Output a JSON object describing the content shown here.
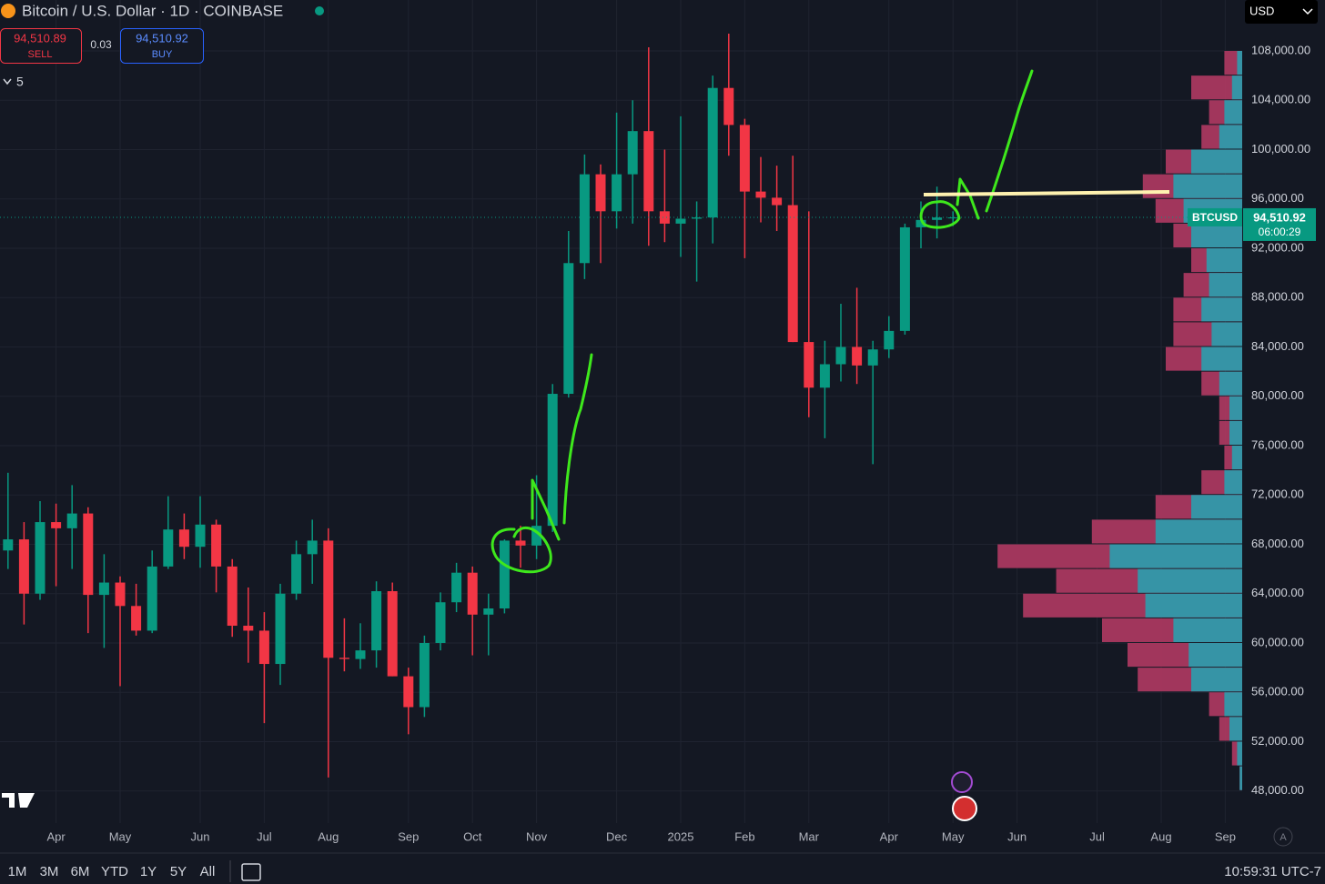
{
  "ui": {
    "symbol_title": "Bitcoin / U.S. Dollar · 1D · COINBASE",
    "sell_price": "94,510.89",
    "sell_label": "SELL",
    "spread": "0.03",
    "buy_price": "94,510.92",
    "buy_label": "BUY",
    "indicator_count": "5",
    "currency": "USD",
    "ranges": [
      "1M",
      "3M",
      "6M",
      "YTD",
      "1Y",
      "5Y",
      "All"
    ],
    "clock": "10:59:31 UTC-7",
    "auto_button": "A"
  },
  "chart_data": {
    "type": "candlestick",
    "categories": [
      null,
      null,
      null,
      "Apr",
      null,
      null,
      null,
      "May",
      null,
      null,
      null,
      null,
      "Jun",
      null,
      null,
      null,
      "Jul",
      null,
      null,
      null,
      "Aug",
      null,
      null,
      null,
      null,
      "Sep",
      null,
      null,
      null,
      "Oct",
      null,
      null,
      null,
      "Nov",
      null,
      null,
      null,
      null,
      "Dec",
      null,
      null,
      null,
      "2025",
      null,
      null,
      null,
      "Feb",
      null,
      null,
      null,
      "Mar",
      null,
      null,
      null,
      null,
      "Apr",
      null,
      null,
      null,
      "May",
      null,
      null,
      null,
      "Jun",
      null,
      null,
      null,
      null,
      "Jul",
      null,
      null,
      null,
      "Aug",
      null,
      null,
      null,
      "Sep"
    ],
    "open": [
      67500,
      68400,
      64000,
      69800,
      69300,
      70500,
      63900,
      64900,
      63000,
      61000,
      66200,
      69200,
      67800,
      69600,
      66200,
      61400,
      61000,
      58300,
      64000,
      67200,
      68300,
      58800,
      58700,
      59400,
      64200,
      57300,
      54800,
      60000,
      63300,
      65700,
      62300,
      62800,
      68300,
      67900,
      69500,
      80200,
      90800,
      98000,
      95000,
      98000,
      101500,
      95000,
      94000,
      94400,
      94500,
      105000,
      102000,
      96600,
      96100,
      95500,
      84400,
      80700,
      82600,
      84000,
      82500,
      83800,
      85300,
      93700,
      94300,
      94500,
      null,
      null,
      null,
      null,
      null,
      null,
      null,
      null,
      null,
      null,
      null,
      null,
      null,
      null,
      null,
      null,
      null
    ],
    "high": [
      73800,
      69800,
      71500,
      71300,
      72800,
      71000,
      67200,
      65400,
      64800,
      67500,
      71900,
      70500,
      71900,
      70000,
      66800,
      64500,
      62500,
      64800,
      68300,
      70000,
      69300,
      62000,
      61600,
      65000,
      64900,
      58000,
      60600,
      64100,
      66500,
      66200,
      64000,
      68400,
      69500,
      73600,
      81000,
      93400,
      99600,
      98800,
      103000,
      104000,
      108300,
      100000,
      102700,
      95800,
      106000,
      109400,
      102500,
      99400,
      98700,
      99500,
      95000,
      84500,
      87500,
      88800,
      84500,
      86500,
      94000,
      95800,
      97000,
      95000,
      null,
      null,
      null,
      null,
      null,
      null,
      null,
      null,
      null,
      null,
      null,
      null,
      null,
      null,
      null,
      null,
      null
    ],
    "low": [
      66000,
      61500,
      63500,
      64600,
      66000,
      60800,
      59600,
      56500,
      60600,
      60800,
      66000,
      66800,
      66100,
      64100,
      60500,
      58400,
      53500,
      56600,
      63500,
      64800,
      49100,
      57700,
      57900,
      58000,
      57300,
      52600,
      54000,
      59400,
      62500,
      59000,
      59000,
      62400,
      66100,
      66800,
      69000,
      79900,
      89500,
      90800,
      93600,
      94000,
      92200,
      92500,
      91300,
      89300,
      92400,
      99500,
      91200,
      94100,
      93400,
      84400,
      78300,
      76600,
      81200,
      81000,
      74500,
      83100,
      85000,
      92000,
      92800,
      93800,
      null,
      null,
      null,
      null,
      null,
      null,
      null,
      null,
      null,
      null,
      null,
      null,
      null,
      null,
      null,
      null,
      null
    ],
    "close": [
      68400,
      64000,
      69800,
      69300,
      70500,
      63900,
      64900,
      63000,
      61000,
      66200,
      69200,
      67800,
      69600,
      66200,
      61400,
      61000,
      58300,
      64000,
      67200,
      68300,
      58800,
      58700,
      59400,
      64200,
      57300,
      54800,
      60000,
      63300,
      65700,
      62300,
      62800,
      68300,
      67900,
      69500,
      80200,
      90800,
      98000,
      95000,
      98000,
      101500,
      95000,
      94000,
      94400,
      94500,
      105000,
      102000,
      96600,
      96100,
      95500,
      84400,
      80700,
      82600,
      84000,
      82500,
      83800,
      85300,
      93700,
      94300,
      94500,
      94500,
      null,
      null,
      null,
      null,
      null,
      null,
      null,
      null,
      null,
      null,
      null,
      null,
      null,
      null,
      null,
      null,
      null
    ],
    "up_color": "#089981",
    "down_color": "#f23645",
    "ylim": [
      45400,
      112130
    ],
    "yticks": [
      {
        "value": 48000,
        "label": "48,000.00"
      },
      {
        "value": 52000,
        "label": "52,000.00"
      },
      {
        "value": 56000,
        "label": "56,000.00"
      },
      {
        "value": 60000,
        "label": "60,000.00"
      },
      {
        "value": 64000,
        "label": "64,000.00"
      },
      {
        "value": 68000,
        "label": "68,000.00"
      },
      {
        "value": 72000,
        "label": "72,000.00"
      },
      {
        "value": 76000,
        "label": "76,000.00"
      },
      {
        "value": 80000,
        "label": "80,000.00"
      },
      {
        "value": 84000,
        "label": "84,000.00"
      },
      {
        "value": 88000,
        "label": "88,000.00"
      },
      {
        "value": 92000,
        "label": "92,000.00"
      },
      {
        "value": 96000,
        "label": "96,000.00"
      },
      {
        "value": 100000,
        "label": "100,000.00"
      },
      {
        "value": 104000,
        "label": "104,000.00"
      },
      {
        "value": 108000,
        "label": "108,000.00"
      }
    ],
    "grid": true,
    "price_line": {
      "name": "BTCUSD",
      "value": 94510.92,
      "label": "94,510.92",
      "countdown": "06:00:29",
      "color": "#089981"
    },
    "volume_profile": {
      "levels": [
        49000,
        51000,
        53000,
        55000,
        57000,
        59000,
        61000,
        63000,
        65000,
        67000,
        69000,
        71000,
        73000,
        75000,
        77000,
        79000,
        81000,
        83000,
        85000,
        87000,
        89000,
        91000,
        93000,
        95000,
        97000,
        99000,
        101000,
        103000,
        105000,
        107000
      ],
      "total": [
        1,
        4,
        9,
        13,
        41,
        45,
        55,
        86,
        73,
        96,
        59,
        34,
        16,
        7,
        9,
        9,
        16,
        30,
        27,
        27,
        23,
        20,
        27,
        34,
        39,
        30,
        16,
        13,
        20,
        7
      ],
      "buy": [
        1,
        2,
        5,
        7,
        20,
        21,
        27,
        38,
        41,
        52,
        34,
        20,
        7,
        4,
        5,
        5,
        9,
        16,
        12,
        16,
        13,
        14,
        20,
        23,
        27,
        20,
        9,
        7,
        4,
        2
      ],
      "xlim": [
        0,
        100
      ],
      "total_color": "#b03a63",
      "buy_color": "#2a9fae"
    }
  }
}
